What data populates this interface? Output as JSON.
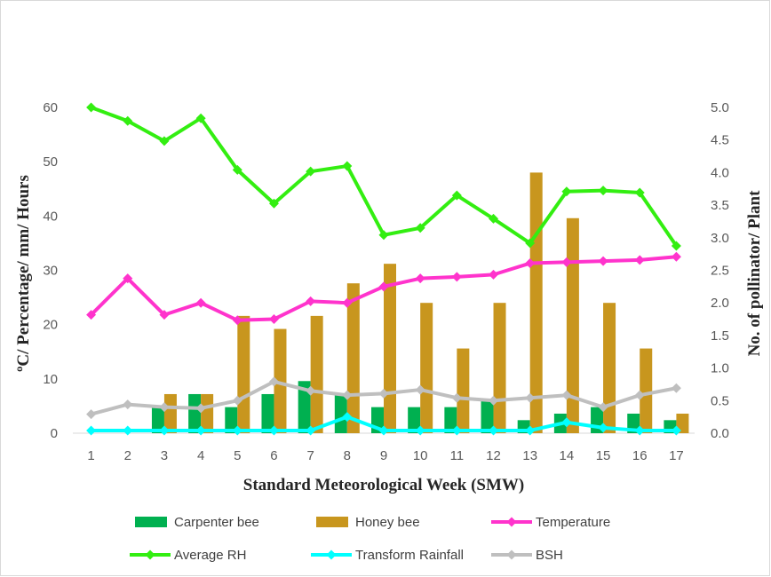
{
  "chart_data": {
    "type": "bar",
    "title": "",
    "xlabel": "Standard Meteorological Week (SMW)",
    "ylabel_left": "ºC/ Percentage/ mm/ Hours",
    "ylabel_right": "No. of pollinator/ Plant",
    "categories": [
      "1",
      "2",
      "3",
      "4",
      "5",
      "6",
      "7",
      "8",
      "9",
      "10",
      "11",
      "12",
      "13",
      "14",
      "15",
      "16",
      "17"
    ],
    "ylim_left": [
      0,
      60
    ],
    "yticks_left": [
      "0",
      "10",
      "20",
      "30",
      "40",
      "50",
      "60"
    ],
    "ylim_right": [
      0,
      5
    ],
    "yticks_right": [
      "0.0",
      "0.5",
      "1.0",
      "1.5",
      "2.0",
      "2.5",
      "3.0",
      "3.5",
      "4.0",
      "4.5",
      "5.0"
    ],
    "grid": false,
    "legend_position": "bottom",
    "bar_series": [
      {
        "name": "Carpenter bee",
        "color": "#00b050",
        "axis": "right",
        "values": [
          0,
          0,
          0.4,
          0.6,
          0.4,
          0.6,
          0.8,
          0.6,
          0.4,
          0.4,
          0.4,
          0.5,
          0.2,
          0.3,
          0.4,
          0.3,
          0.2
        ]
      },
      {
        "name": "Honey bee",
        "color": "#c8961e",
        "axis": "right",
        "values": [
          0,
          0,
          0.6,
          0.6,
          1.8,
          1.6,
          1.8,
          2.3,
          2.6,
          2.0,
          1.3,
          2.0,
          4.0,
          3.3,
          2.0,
          1.3,
          0.3
        ]
      }
    ],
    "line_series": [
      {
        "name": "Temperature",
        "color": "#ff33cc",
        "axis": "left",
        "values": [
          21.8,
          28.5,
          21.8,
          24.0,
          20.8,
          21.0,
          24.3,
          24.0,
          27.0,
          28.5,
          28.8,
          29.2,
          31.3,
          31.5,
          31.7,
          31.9,
          32.5
        ]
      },
      {
        "name": "Average RH",
        "color": "#33ee11",
        "axis": "left",
        "values": [
          60.0,
          57.5,
          53.8,
          58.0,
          48.5,
          42.3,
          48.2,
          49.2,
          36.5,
          37.8,
          43.8,
          39.5,
          35.0,
          44.5,
          44.7,
          44.3,
          34.5
        ]
      },
      {
        "name": "Transform Rainfall",
        "color": "#00ffff",
        "axis": "left",
        "values": [
          0.5,
          0.5,
          0.5,
          0.5,
          0.5,
          0.5,
          0.5,
          3.0,
          0.5,
          0.5,
          0.5,
          0.5,
          0.5,
          2.0,
          1.0,
          0.5,
          0.5
        ]
      },
      {
        "name": "BSH",
        "color": "#bfbfbf",
        "axis": "left",
        "values": [
          3.5,
          5.3,
          4.8,
          4.6,
          6.0,
          9.5,
          7.8,
          7.0,
          7.3,
          8.0,
          6.5,
          6.0,
          6.5,
          7.0,
          4.8,
          7.0,
          8.3
        ]
      }
    ]
  }
}
